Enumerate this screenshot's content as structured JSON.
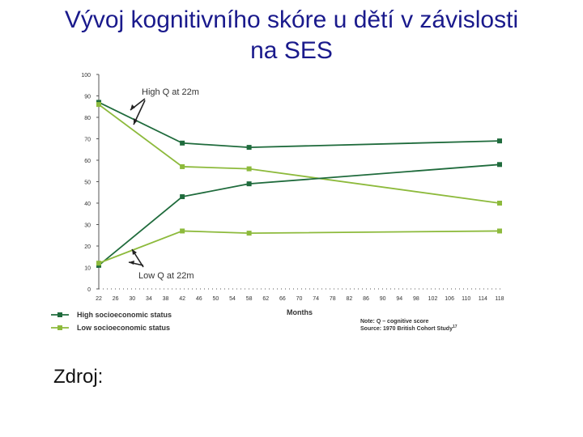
{
  "slide": {
    "title_line1": "Vývoj kognitivního skóre u dětí v závislosti",
    "title_line2": "na SES",
    "source_label": "Zdroj:"
  },
  "colors": {
    "high": "#1f6b3c",
    "low": "#8dba3c",
    "axis": "#555555",
    "text": "#333333"
  },
  "chart_data": {
    "type": "line",
    "xlabel": "Months",
    "ylabel": "",
    "ylim": [
      0,
      100
    ],
    "yticks": [
      0,
      10,
      20,
      30,
      40,
      50,
      60,
      70,
      80,
      90,
      100
    ],
    "xticks": [
      22,
      26,
      30,
      34,
      38,
      42,
      46,
      50,
      54,
      58,
      62,
      66,
      70,
      74,
      78,
      82,
      86,
      90,
      94,
      98,
      102,
      106,
      110,
      114,
      118
    ],
    "xlim": [
      22,
      118
    ],
    "series": [
      {
        "name": "High socioeconomic status",
        "group": "high",
        "x": [
          22,
          42,
          58,
          118
        ],
        "y": [
          87,
          68,
          66,
          69
        ]
      },
      {
        "name": "Low socioeconomic status",
        "group": "low",
        "x": [
          22,
          42,
          58,
          118
        ],
        "y": [
          86,
          57,
          56,
          40
        ]
      },
      {
        "name": "High socioeconomic status",
        "group": "high",
        "x": [
          22,
          42,
          58,
          118
        ],
        "y": [
          11,
          43,
          49,
          58
        ]
      },
      {
        "name": "Low socioeconomic status",
        "group": "low",
        "x": [
          22,
          42,
          58,
          118
        ],
        "y": [
          12,
          27,
          26,
          27
        ]
      }
    ],
    "legend": [
      {
        "label": "High socioeconomic status",
        "group": "high"
      },
      {
        "label": "Low socioeconomic status",
        "group": "low"
      }
    ],
    "annotations": {
      "high_q": "High Q at 22m",
      "low_q": "Low Q at 22m",
      "note": "Note: Q – cognitive score",
      "source": "Source: 1970 British Cohort Study",
      "source_sup": "17"
    }
  }
}
